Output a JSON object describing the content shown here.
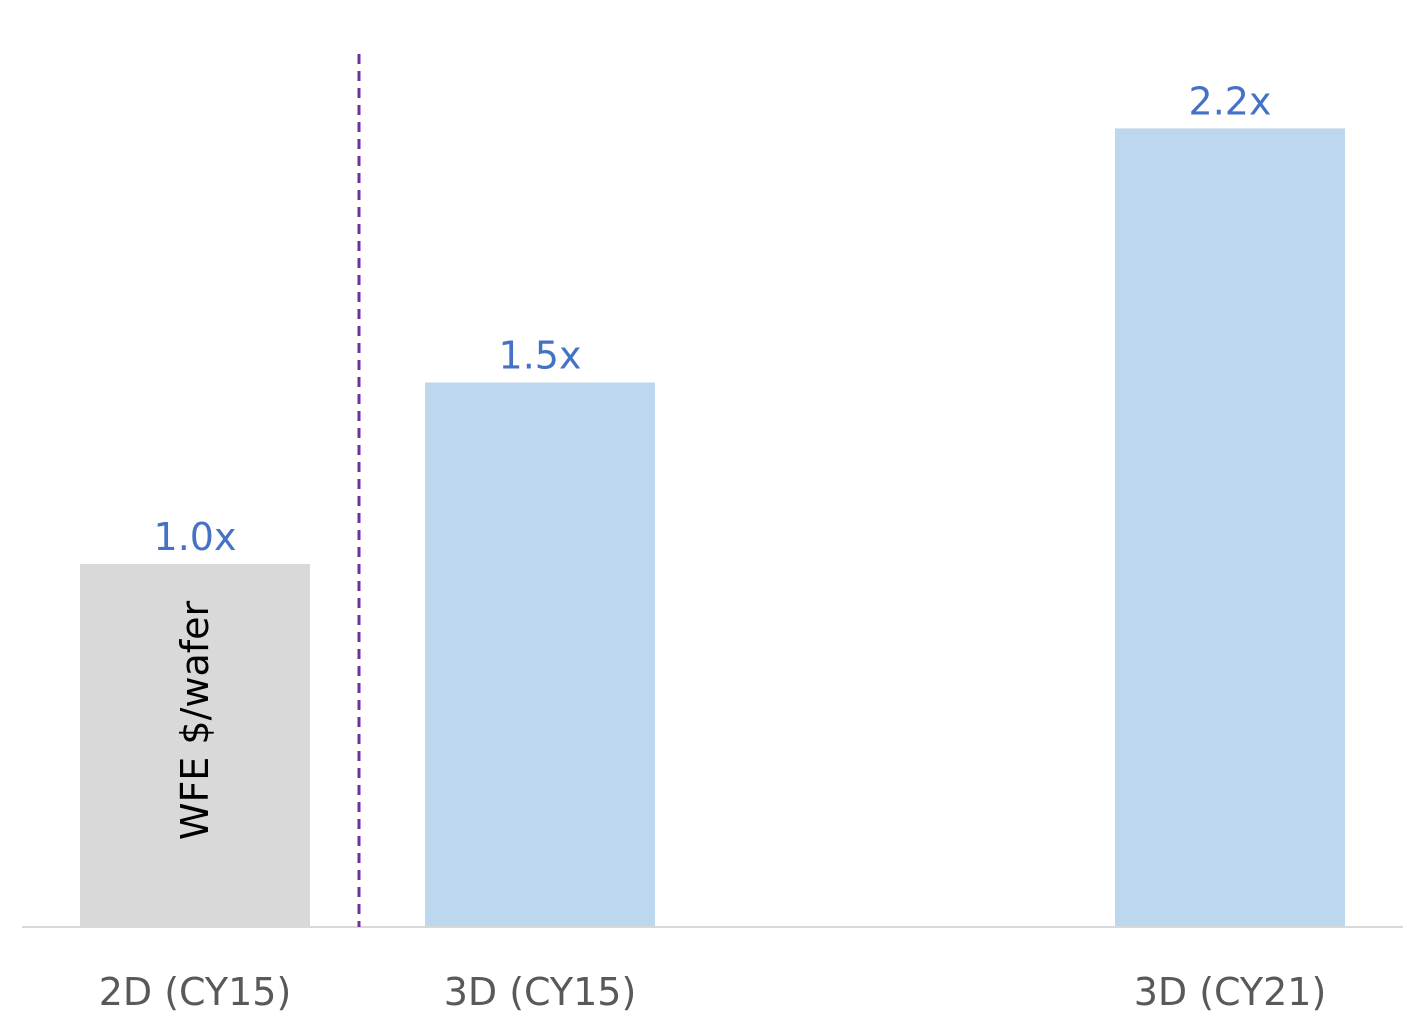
{
  "chart_data": {
    "type": "bar",
    "title": "",
    "xlabel": "",
    "ylabel": "",
    "categories": [
      "2D (CY15)",
      "3D (CY15)",
      "3D (CY21)"
    ],
    "values": [
      1.0,
      1.5,
      2.2
    ],
    "value_labels": [
      "1.0x",
      "1.5x",
      "2.2x"
    ],
    "in_bar_label": "WFE $/wafer",
    "ylim": [
      0,
      2.4
    ],
    "grid": false,
    "legend": "none",
    "separator": "dashed vertical line between 2D (CY15) and 3D (CY15)"
  },
  "colors": {
    "bar_2d": "#d9d9d9",
    "bar_3d": "#bdd7ee",
    "value_label": "#4472c4",
    "category_label": "#595959",
    "in_bar_label": "#000000",
    "baseline": "#d9d9d9",
    "separator": "#7030a0"
  }
}
